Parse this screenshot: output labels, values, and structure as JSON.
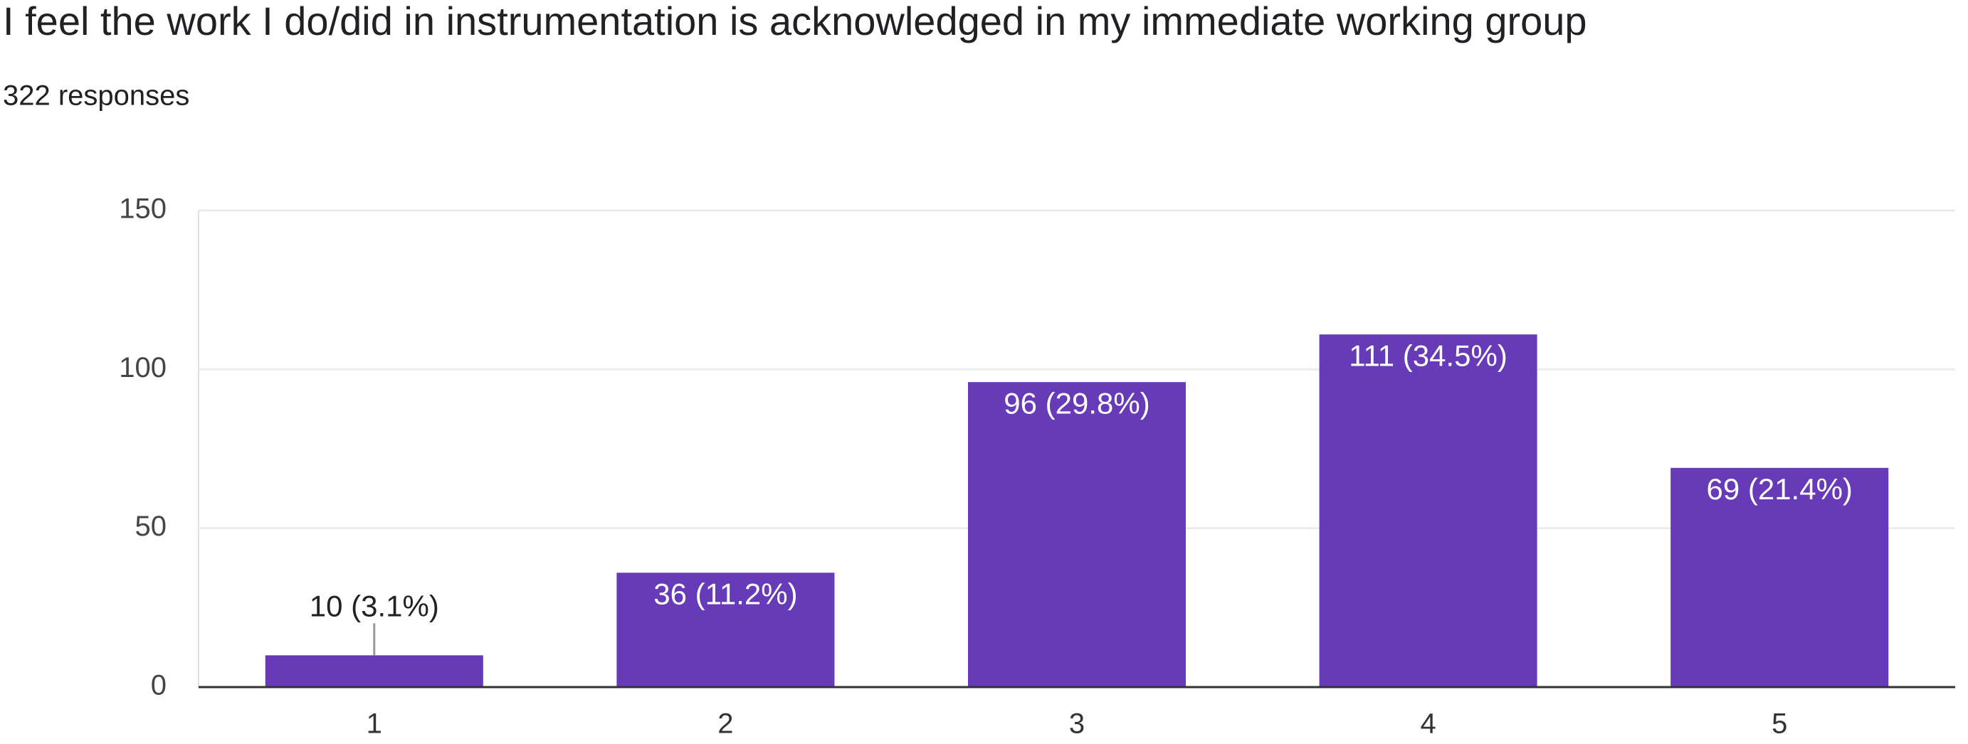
{
  "chart_data": {
    "type": "bar",
    "title": "I feel the work I do/did in instrumentation is acknowledged in my immediate working group",
    "subtitle": "322 responses",
    "categories": [
      "1",
      "2",
      "3",
      "4",
      "5"
    ],
    "values": [
      10,
      36,
      96,
      111,
      69
    ],
    "value_labels": [
      "10 (3.1%)",
      "36 (11.2%)",
      "96 (29.8%)",
      "111 (34.5%)",
      "69 (21.4%)"
    ],
    "color": "#673ab7",
    "ylim": [
      0,
      150
    ],
    "yticks": [
      0,
      50,
      100,
      150
    ],
    "grid": true
  }
}
